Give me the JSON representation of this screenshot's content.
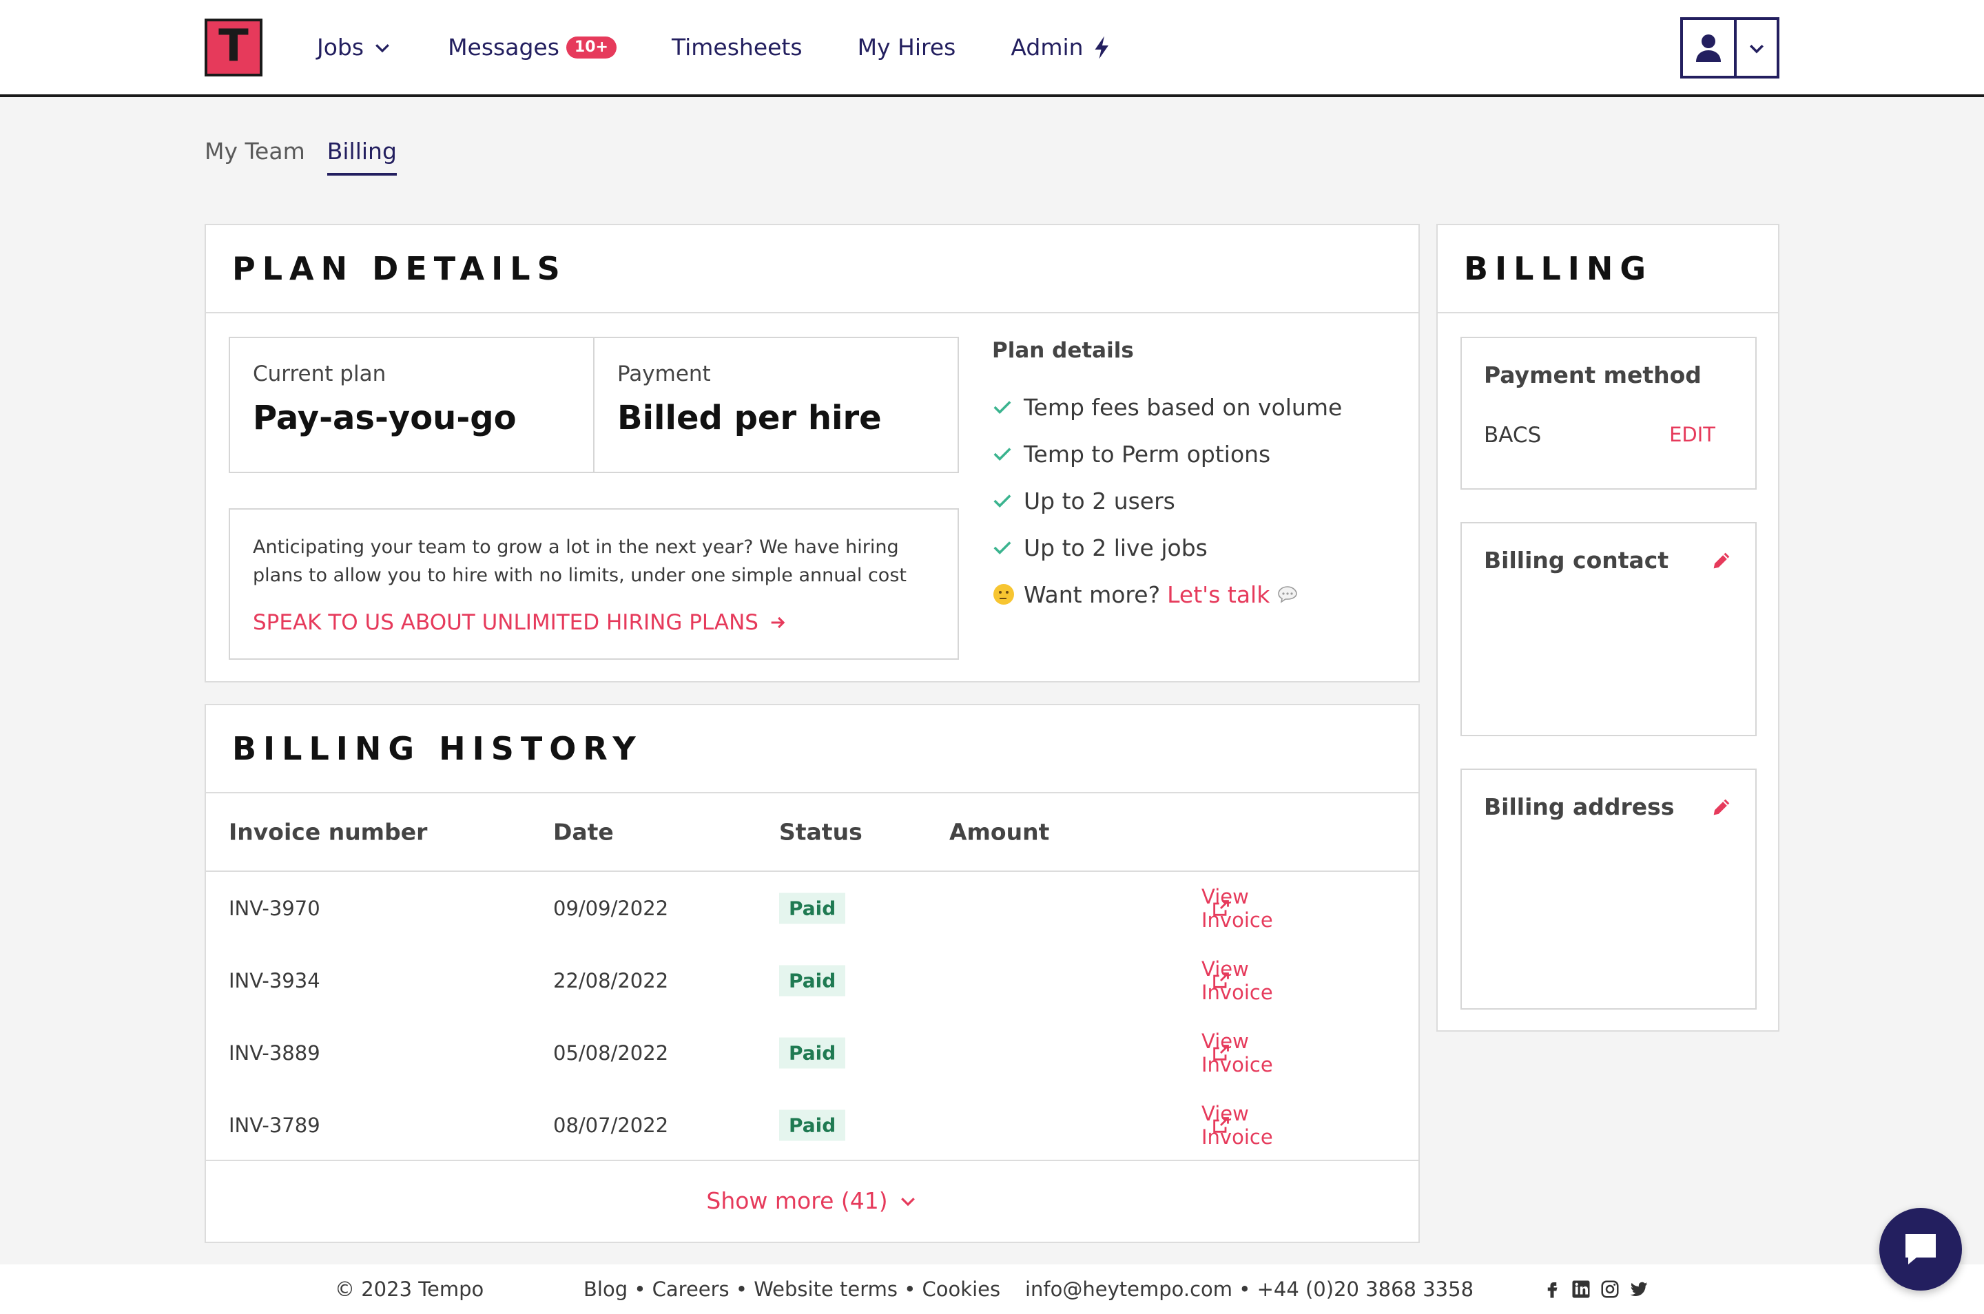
{
  "header": {
    "logo_letter": "T",
    "nav": {
      "jobs": "Jobs",
      "messages": "Messages",
      "messages_badge": "10+",
      "timesheets": "Timesheets",
      "my_hires": "My Hires",
      "admin": "Admin"
    }
  },
  "subtabs": {
    "my_team": "My Team",
    "billing": "Billing"
  },
  "plan_details": {
    "title": "PLAN DETAILS",
    "current_plan_label": "Current plan",
    "current_plan_value": "Pay-as-you-go",
    "payment_label": "Payment",
    "payment_value": "Billed per hire",
    "promo_text": "Anticipating your team to grow a lot in the next year? We have hiring plans to allow you to hire with no limits, under one simple annual cost",
    "promo_link": "SPEAK TO US ABOUT UNLIMITED HIRING PLANS",
    "features_title": "Plan details",
    "features": [
      "Temp fees based on volume",
      "Temp to Perm options",
      "Up to 2 users",
      "Up to 2 live jobs"
    ],
    "want_more": "Want more?",
    "lets_talk": "Let's talk"
  },
  "billing_history": {
    "title": "BILLING HISTORY",
    "headers": {
      "invoice": "Invoice number",
      "date": "Date",
      "status": "Status",
      "amount": "Amount"
    },
    "rows": [
      {
        "invoice": "INV-3970",
        "date": "09/09/2022",
        "status": "Paid",
        "link": "View Invoice"
      },
      {
        "invoice": "INV-3934",
        "date": "22/08/2022",
        "status": "Paid",
        "link": "View Invoice"
      },
      {
        "invoice": "INV-3889",
        "date": "05/08/2022",
        "status": "Paid",
        "link": "View Invoice"
      },
      {
        "invoice": "INV-3789",
        "date": "08/07/2022",
        "status": "Paid",
        "link": "View Invoice"
      }
    ],
    "show_more": "Show more (41)"
  },
  "billing": {
    "title": "BILLING",
    "payment_method_label": "Payment method",
    "payment_method_value": "BACS",
    "edit": "EDIT",
    "billing_contact_label": "Billing contact",
    "billing_address_label": "Billing address"
  },
  "footer": {
    "copyright": "© 2023 Tempo",
    "links": "Blog • Careers • Website terms • Cookies",
    "contact": "info@heytempo.com • +44 (0)20 3868 3358"
  },
  "colors": {
    "accent": "#e63a5b",
    "navy": "#231f5f",
    "success": "#1f7a52"
  }
}
